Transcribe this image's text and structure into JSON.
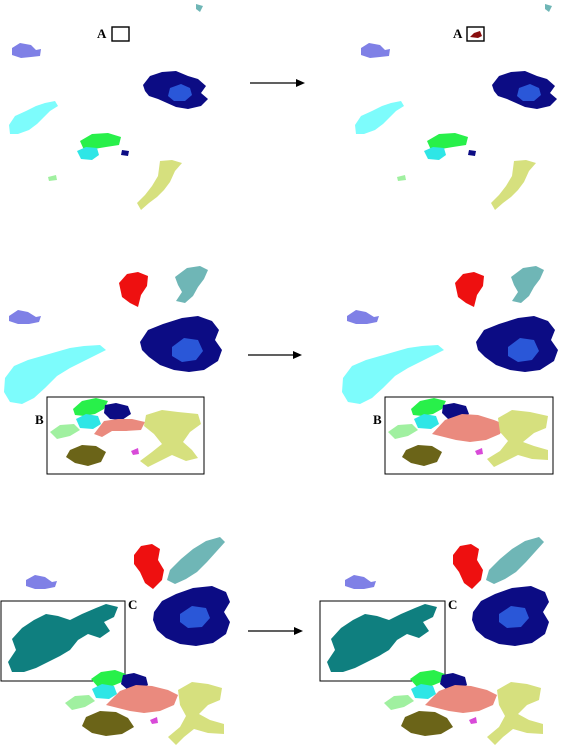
{
  "figure": {
    "rows": [
      {
        "label": "A",
        "has_arrow": true
      },
      {
        "label": "B",
        "has_arrow": true
      },
      {
        "label": "C",
        "has_arrow": true
      }
    ]
  },
  "colors": {
    "navy": "#0c0c84",
    "blue": "#2a57d8",
    "periwinkle": "#7f80e6",
    "light_cyan": "#7dfcfc",
    "cyan": "#2ee6e6",
    "green": "#28f04a",
    "teal": "#0f7f7f",
    "light_teal": "#6fb6b6",
    "yellow_green": "#d6e07e",
    "light_green": "#a0f0a0",
    "red": "#ee1010",
    "salmon": "#ea8a7e",
    "olive": "#6b6418",
    "magenta": "#d84ad8",
    "dark_red": "#8a0f0f"
  }
}
